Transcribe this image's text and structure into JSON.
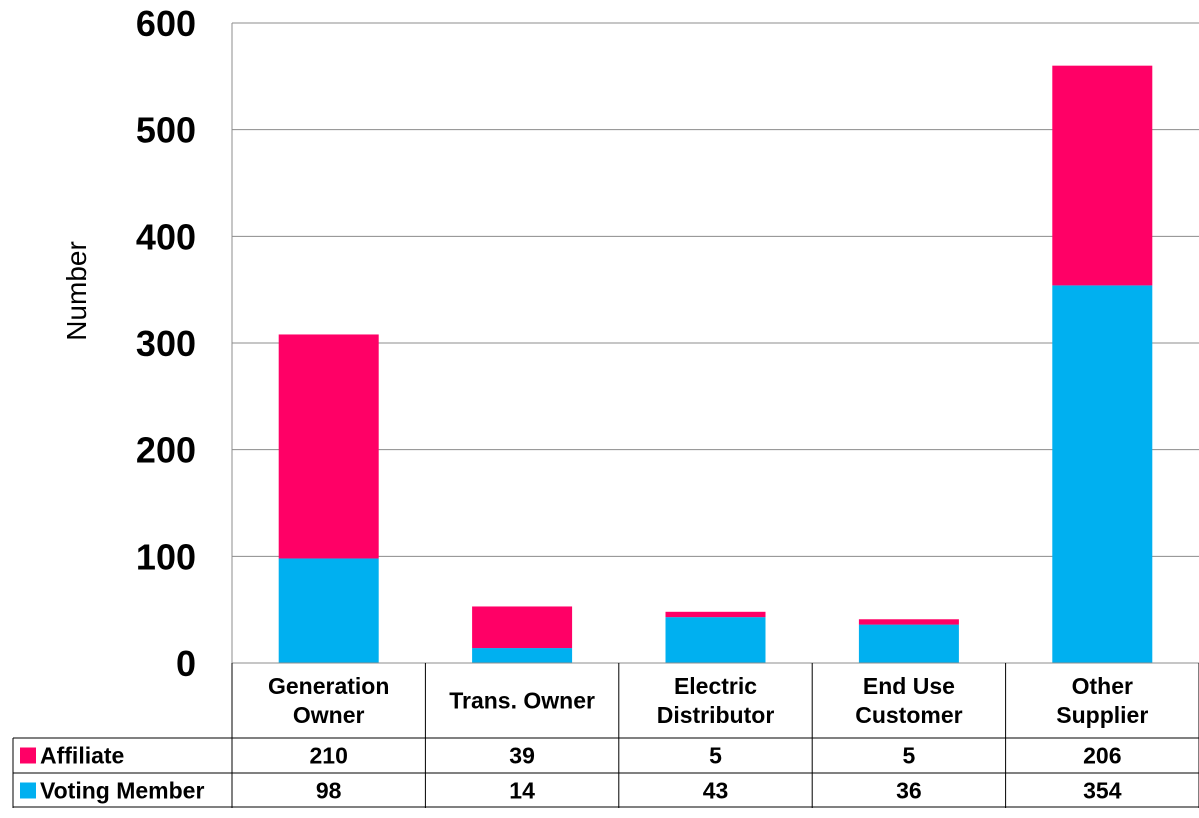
{
  "chart_data": {
    "type": "bar",
    "stacked": true,
    "categories": [
      [
        "Generation",
        "Owner"
      ],
      [
        "Trans. Owner"
      ],
      [
        "Electric",
        "Distributor"
      ],
      [
        "End Use",
        "Customer"
      ],
      [
        "Other",
        "Supplier"
      ]
    ],
    "series": [
      {
        "name": "Voting Member",
        "values": [
          98,
          14,
          43,
          36,
          354
        ],
        "color": "#00B0F0"
      },
      {
        "name": "Affiliate",
        "values": [
          210,
          39,
          5,
          5,
          206
        ],
        "color": "#FF0066"
      }
    ],
    "table_rows": [
      "Affiliate",
      "Voting Member"
    ],
    "ylabel": "Number",
    "xlabel": "",
    "title": "",
    "ylim": [
      0,
      600
    ],
    "yticks": [
      0,
      100,
      200,
      300,
      400,
      500,
      600
    ],
    "grid": true,
    "legend": "data-table"
  }
}
